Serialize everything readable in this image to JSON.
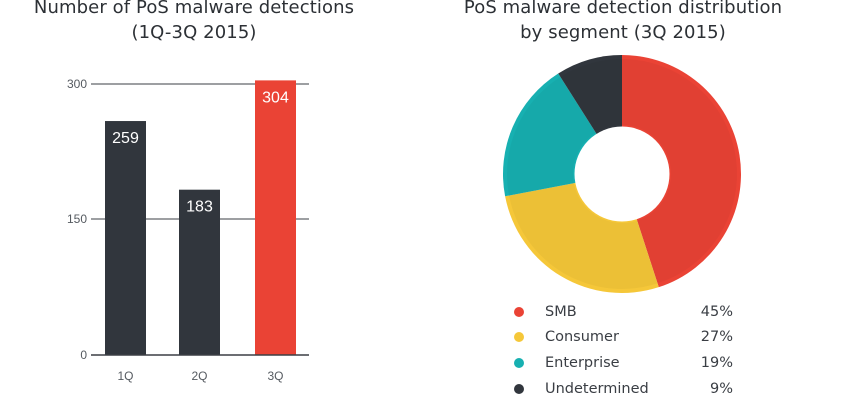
{
  "chart_data": [
    {
      "type": "bar",
      "title": "Number of PoS malware detections (1Q-3Q 2015)",
      "title_lines": [
        "Number of PoS malware detections",
        "(1Q-3Q 2015)"
      ],
      "categories": [
        "1Q",
        "2Q",
        "3Q"
      ],
      "values": [
        259,
        183,
        304
      ],
      "value_labels": [
        "259",
        "183",
        "304"
      ],
      "bar_colors": [
        "#31363d",
        "#31363d",
        "#ea4335"
      ],
      "xlabel": "",
      "ylabel": "",
      "yticks": [
        0,
        150,
        300
      ],
      "ytick_labels": [
        "0",
        "150",
        "300"
      ],
      "ylim": [
        0,
        304
      ],
      "grid": true,
      "legend": null
    },
    {
      "type": "pie",
      "variant": "donut",
      "title": "PoS malware detection distribution by segment (3Q 2015)",
      "title_lines": [
        "PoS malware detection distribution",
        "by segment (3Q 2015)"
      ],
      "labels": [
        "SMB",
        "Consumer",
        "Enterprise",
        "Undetermined"
      ],
      "values": [
        45,
        27,
        19,
        9
      ],
      "value_labels": [
        "45%",
        "27%",
        "19%",
        "9%"
      ],
      "colors": [
        "#ea4335",
        "#f5c739",
        "#17b0b1",
        "#31363d"
      ],
      "start_angle_deg": 0,
      "direction": "clockwise",
      "legend_position": "bottom"
    }
  ],
  "bar_chart": {
    "title_line1": "Number of PoS malware detections",
    "title_line2": "(1Q-3Q 2015)",
    "yticks": [
      "0",
      "150",
      "300"
    ],
    "bars": [
      {
        "category": "1Q",
        "value": "259"
      },
      {
        "category": "2Q",
        "value": "183"
      },
      {
        "category": "3Q",
        "value": "304"
      }
    ]
  },
  "pie_chart": {
    "title_line1": "PoS malware detection distribution",
    "title_line2": "by segment (3Q 2015)",
    "legend": [
      {
        "label": "SMB",
        "value": "45%",
        "color": "#ea4335"
      },
      {
        "label": "Consumer",
        "value": "27%",
        "color": "#f5c739"
      },
      {
        "label": "Enterprise",
        "value": "19%",
        "color": "#17b0b1"
      },
      {
        "label": "Undetermined",
        "value": "9%",
        "color": "#31363d"
      }
    ]
  }
}
